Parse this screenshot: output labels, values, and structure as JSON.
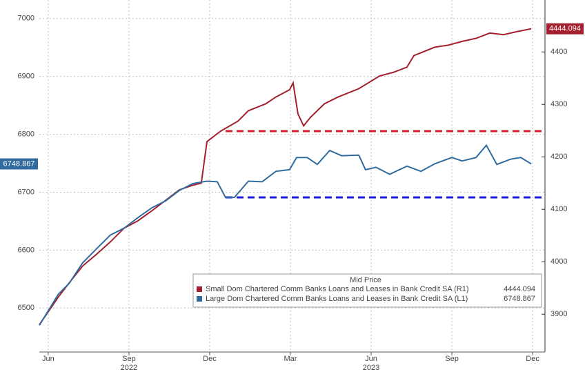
{
  "chart_data": {
    "type": "line",
    "xlim": [
      -0.33,
      18.46
    ],
    "xticks": [
      {
        "value": 0,
        "label": "Jun"
      },
      {
        "value": 3,
        "label": "Sep"
      },
      {
        "value": 6,
        "label": "Dec"
      },
      {
        "value": 9,
        "label": "Mar"
      },
      {
        "value": 12,
        "label": "Jun"
      },
      {
        "value": 15,
        "label": "Sep"
      },
      {
        "value": 18,
        "label": "Dec"
      }
    ],
    "year_labels": [
      {
        "value": 3,
        "label": "2022"
      },
      {
        "value": 12,
        "label": "2023"
      }
    ],
    "ylim": [
      6424,
      7032
    ],
    "yticks": [
      6500,
      6600,
      6700,
      6800,
      6900,
      7000
    ],
    "y2lim": [
      3828,
      4499
    ],
    "y2ticks": [
      3900,
      4000,
      4100,
      4200,
      4300,
      4400
    ],
    "grid": true,
    "legend_title": "Mid Price",
    "series": [
      {
        "name": "Small Dom Chartered Comm Banks Loans and Leases in Bank Credit SA  (R1)",
        "color": "#a3202e",
        "axis": "y2",
        "x": [
          -0.33,
          0.38,
          0.77,
          1.28,
          1.79,
          2.31,
          2.82,
          3.33,
          3.85,
          4.36,
          4.87,
          5.38,
          5.69,
          5.9,
          6.41,
          7.05,
          7.44,
          8.08,
          8.46,
          8.97,
          9.1,
          9.28,
          9.49,
          9.74,
          10.26,
          10.77,
          11.54,
          12.31,
          12.82,
          13.33,
          13.59,
          14.36,
          14.87,
          15.38,
          15.9,
          16.41,
          16.92,
          17.44,
          17.95
        ],
        "values": [
          3880,
          3933,
          3959,
          3992,
          4014,
          4038,
          4064,
          4078,
          4097,
          4117,
          4137,
          4146,
          4150,
          4229,
          4249,
          4268,
          4288,
          4301,
          4314,
          4328,
          4341,
          4282,
          4259,
          4275,
          4301,
          4314,
          4330,
          4354,
          4361,
          4371,
          4393,
          4409,
          4413,
          4420,
          4426,
          4436,
          4433,
          4439,
          4444.094
        ]
      },
      {
        "name": "Large Dom Chartered Comm Banks Loans and Leases in Bank Credit SA  (L1)",
        "color": "#2f6b9e",
        "x": [
          -0.33,
          0.38,
          0.77,
          1.28,
          1.79,
          2.31,
          2.82,
          3.33,
          3.85,
          4.36,
          4.87,
          5.38,
          5.9,
          6.28,
          6.59,
          6.92,
          7.44,
          7.95,
          8.46,
          8.97,
          9.23,
          9.62,
          10,
          10.46,
          10.9,
          11.54,
          11.79,
          12.18,
          12.69,
          13.33,
          13.85,
          14.36,
          15,
          15.38,
          15.9,
          16.28,
          16.67,
          17.18,
          17.56,
          17.95
        ],
        "values": [
          6470,
          6524,
          6542,
          6578,
          6602,
          6626,
          6638,
          6656,
          6673,
          6685,
          6703,
          6715,
          6719,
          6718,
          6691,
          6691,
          6719,
          6718,
          6736,
          6739,
          6760,
          6760,
          6748,
          6772,
          6763,
          6764,
          6739,
          6743,
          6731,
          6745,
          6736,
          6749,
          6760,
          6754,
          6760,
          6781,
          6748,
          6757,
          6760,
          6748.867
        ]
      }
    ],
    "reference_lines": [
      {
        "axis": "y2",
        "value": 4249,
        "x_start": 6.59,
        "color": "#cc1f2a"
      },
      {
        "axis": "y",
        "value": 6691,
        "x_start": 6.59,
        "color": "#1c1cd6"
      }
    ]
  }
}
